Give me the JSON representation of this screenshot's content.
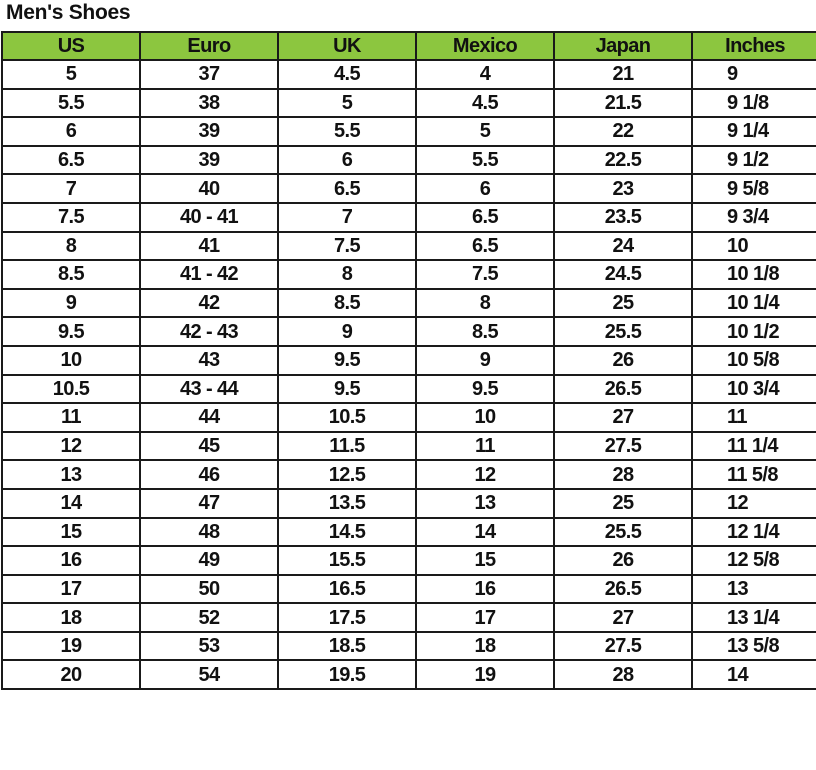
{
  "title": "Men's Shoes",
  "colors": {
    "header_bg": "#8cc63f",
    "border": "#1a1a1a"
  },
  "columns": [
    "US",
    "Euro",
    "UK",
    "Mexico",
    "Japan",
    "Inches"
  ],
  "rows": [
    [
      "5",
      "37",
      "4.5",
      "4",
      "21",
      "9"
    ],
    [
      "5.5",
      "38",
      "5",
      "4.5",
      "21.5",
      "9 1/8"
    ],
    [
      "6",
      "39",
      "5.5",
      "5",
      "22",
      "9 1/4"
    ],
    [
      "6.5",
      "39",
      "6",
      "5.5",
      "22.5",
      "9 1/2"
    ],
    [
      "7",
      "40",
      "6.5",
      "6",
      "23",
      "9 5/8"
    ],
    [
      "7.5",
      "40 - 41",
      "7",
      "6.5",
      "23.5",
      "9 3/4"
    ],
    [
      "8",
      "41",
      "7.5",
      "6.5",
      "24",
      "10"
    ],
    [
      "8.5",
      "41 - 42",
      "8",
      "7.5",
      "24.5",
      "10 1/8"
    ],
    [
      "9",
      "42",
      "8.5",
      "8",
      "25",
      "10 1/4"
    ],
    [
      "9.5",
      "42 - 43",
      "9",
      "8.5",
      "25.5",
      "10 1/2"
    ],
    [
      "10",
      "43",
      "9.5",
      "9",
      "26",
      "10 5/8"
    ],
    [
      "10.5",
      "43 - 44",
      "9.5",
      "9.5",
      "26.5",
      "10 3/4"
    ],
    [
      "11",
      "44",
      "10.5",
      "10",
      "27",
      "11"
    ],
    [
      "12",
      "45",
      "11.5",
      "11",
      "27.5",
      "11 1/4"
    ],
    [
      "13",
      "46",
      "12.5",
      "12",
      "28",
      "11 5/8"
    ],
    [
      "14",
      "47",
      "13.5",
      "13",
      "25",
      "12"
    ],
    [
      "15",
      "48",
      "14.5",
      "14",
      "25.5",
      "12 1/4"
    ],
    [
      "16",
      "49",
      "15.5",
      "15",
      "26",
      "12 5/8"
    ],
    [
      "17",
      "50",
      "16.5",
      "16",
      "26.5",
      "13"
    ],
    [
      "18",
      "52",
      "17.5",
      "17",
      "27",
      "13 1/4"
    ],
    [
      "19",
      "53",
      "18.5",
      "18",
      "27.5",
      "13 5/8"
    ],
    [
      "20",
      "54",
      "19.5",
      "19",
      "28",
      "14"
    ]
  ]
}
